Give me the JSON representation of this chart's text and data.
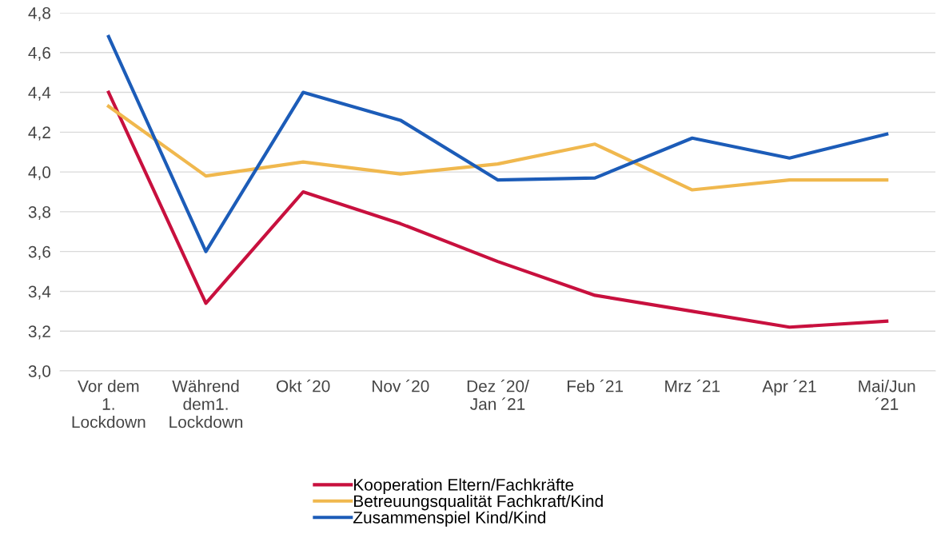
{
  "chart_data": {
    "type": "line",
    "categories": [
      "Vor dem\n1.\nLockdown",
      "Während\ndem1.\nLockdown",
      "Okt ´20",
      "Nov ´20",
      "Dez ´20/\nJan ´21",
      "Feb ´21",
      "Mrz ´21",
      "Apr ´21",
      "Mai/Jun\n´21"
    ],
    "series": [
      {
        "name": "Kooperation Eltern/Fachkräfte",
        "color": "#c8103e",
        "values": [
          4.4,
          3.34,
          3.9,
          3.74,
          3.55,
          3.38,
          3.3,
          3.22,
          3.25
        ]
      },
      {
        "name": "Betreuungsqualität Fachkraft/Kind",
        "color": "#f0b84e",
        "values": [
          4.33,
          3.98,
          4.05,
          3.99,
          4.04,
          4.14,
          3.91,
          3.96,
          3.96
        ]
      },
      {
        "name": "Zusammenspiel Kind/Kind",
        "color": "#1c5cb8",
        "values": [
          4.68,
          3.6,
          4.4,
          4.26,
          3.96,
          3.97,
          4.17,
          4.07,
          4.19
        ]
      }
    ],
    "ylim": [
      3.0,
      4.8
    ],
    "yticks": [
      {
        "value": 3.0,
        "label": "3,0"
      },
      {
        "value": 3.2,
        "label": "3,2"
      },
      {
        "value": 3.4,
        "label": "3,4"
      },
      {
        "value": 3.6,
        "label": "3,6"
      },
      {
        "value": 3.8,
        "label": "3,8"
      },
      {
        "value": 4.0,
        "label": "4,0"
      },
      {
        "value": 4.2,
        "label": "4,2"
      },
      {
        "value": 4.4,
        "label": "4,4"
      },
      {
        "value": 4.6,
        "label": "4,6"
      },
      {
        "value": 4.8,
        "label": "4,8"
      }
    ],
    "grid": "y",
    "legend": "bottom",
    "marker": "none",
    "line_style": "solid"
  }
}
